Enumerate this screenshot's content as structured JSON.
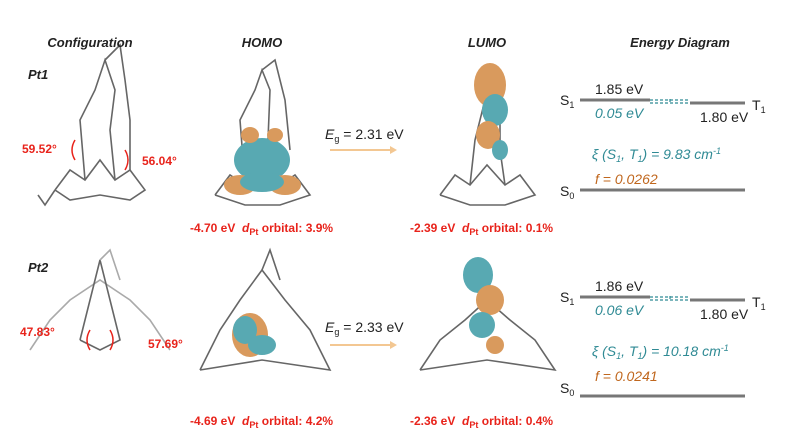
{
  "headers": [
    "Configuration",
    "HOMO",
    "LUMO",
    "Energy Diagram"
  ],
  "rows": [
    {
      "label": "Pt1",
      "angles": [
        "59.52°",
        "56.04°"
      ],
      "homo": {
        "energy": "-4.70 eV",
        "d": "d",
        "sub": "Pt",
        "text": "orbital: 3.9%"
      },
      "gap": {
        "symbol": "E",
        "sub": "g",
        "text": "= 2.31 eV"
      },
      "lumo": {
        "energy": "-2.39 eV",
        "d": "d",
        "sub": "Pt",
        "text": "orbital: 0.1%"
      },
      "diagram": {
        "s1": [
          "S",
          "1"
        ],
        "t1": [
          "T",
          "1"
        ],
        "s0": [
          "S",
          "0"
        ],
        "s1_energy": "1.85 eV",
        "splitting": "0.05 eV",
        "t1_energy": "1.80 eV",
        "xi": [
          "ξ (S",
          "1",
          ", T",
          "1",
          ") = 9.83 cm",
          "-1"
        ],
        "f": "f = 0.0262"
      }
    },
    {
      "label": "Pt2",
      "angles": [
        "47.83°",
        "57.69°"
      ],
      "homo": {
        "energy": "-4.69 eV",
        "d": "d",
        "sub": "Pt",
        "text": "orbital: 4.2%"
      },
      "gap": {
        "symbol": "E",
        "sub": "g",
        "text": "= 2.33 eV"
      },
      "lumo": {
        "energy": "-2.36 eV",
        "d": "d",
        "sub": "Pt",
        "text": "orbital: 0.4%"
      },
      "diagram": {
        "s1": [
          "S",
          "1"
        ],
        "t1": [
          "T",
          "1"
        ],
        "s0": [
          "S",
          "0"
        ],
        "s1_energy": "1.86 eV",
        "splitting": "0.06 eV",
        "t1_energy": "1.80 eV",
        "xi": [
          "ξ (S",
          "1",
          ", T",
          "1",
          ") = 10.18 cm",
          "-1"
        ],
        "f": "f = 0.0241"
      }
    }
  ]
}
